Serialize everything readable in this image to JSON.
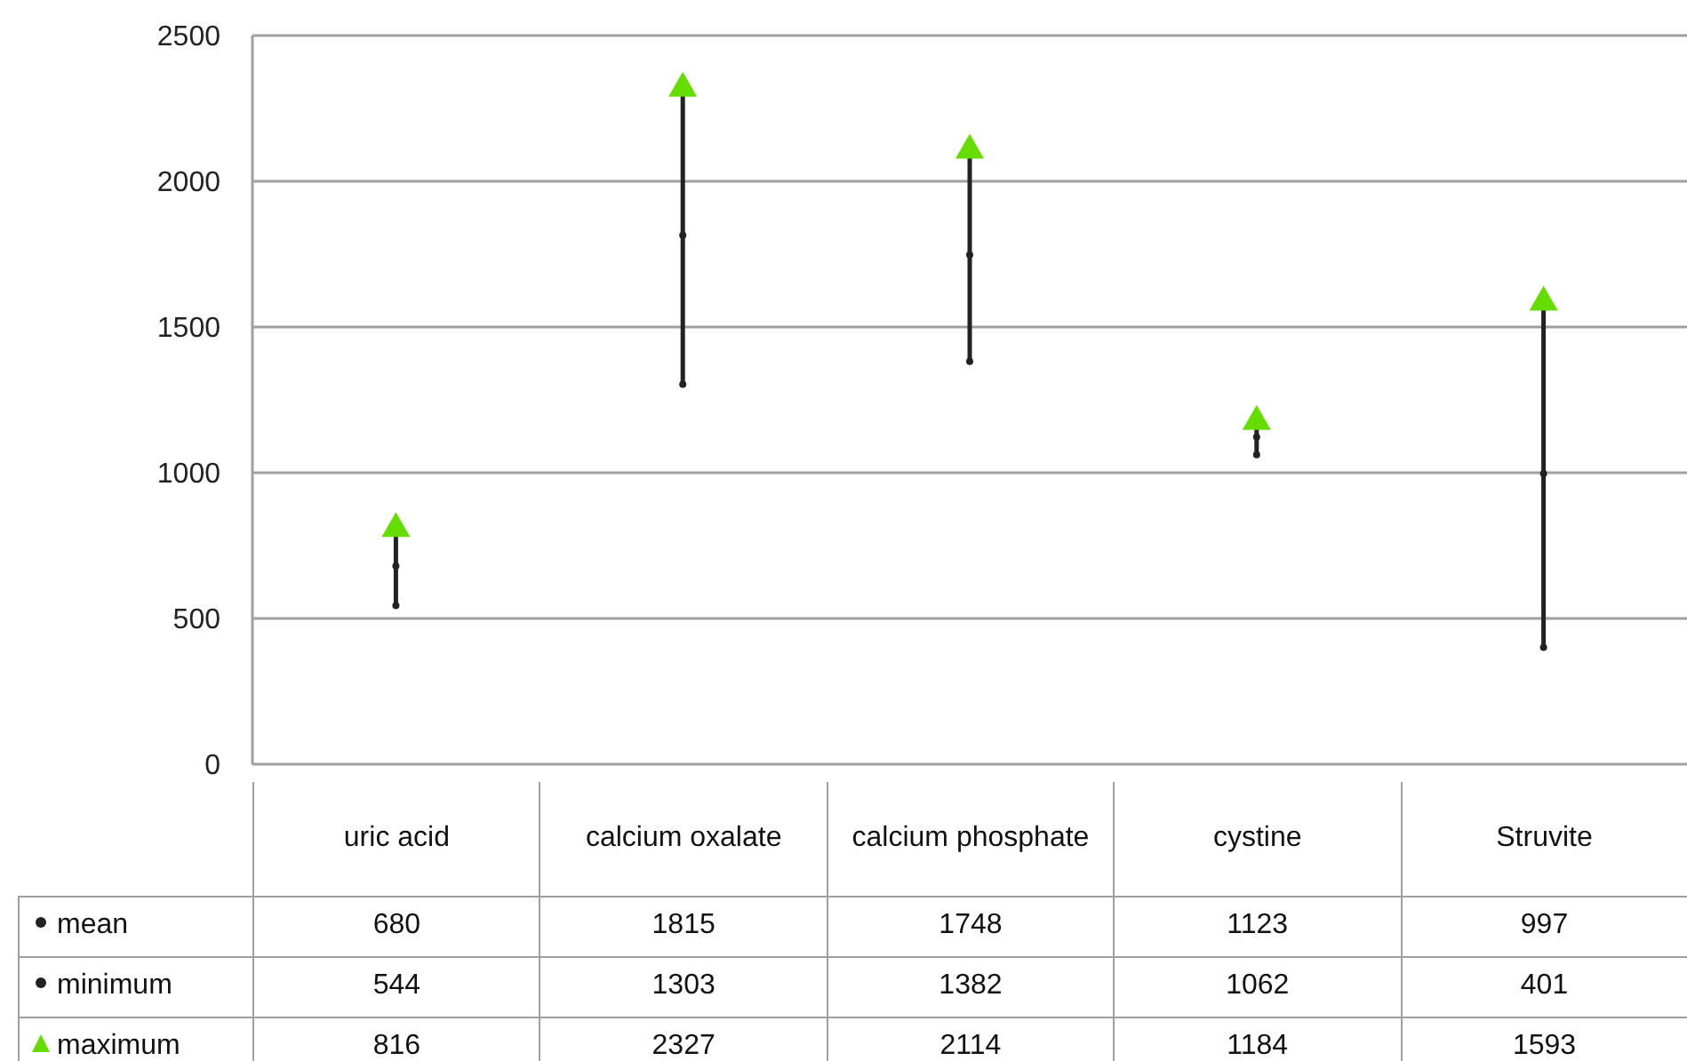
{
  "chart_data": {
    "type": "scatter",
    "categories": [
      "uric acid",
      "calcium oxalate",
      "calcium phosphate",
      "cystine",
      "Struvite"
    ],
    "series": [
      {
        "name": "mean",
        "color": "#222222",
        "values": [
          680,
          1815,
          1748,
          1123,
          997
        ],
        "marker": "circle"
      },
      {
        "name": "minimum",
        "color": "#222222",
        "values": [
          544,
          1303,
          1382,
          1062,
          401
        ],
        "marker": "circle"
      },
      {
        "name": "maximum",
        "color": "#66dd00",
        "values": [
          816,
          2327,
          2114,
          1184,
          1593
        ],
        "marker": "triangle"
      }
    ],
    "ylim": [
      0,
      2500
    ],
    "yticks": [
      0,
      500,
      1000,
      1500,
      2000,
      2500
    ],
    "grid": "y",
    "legend": "bottom",
    "data_labels": true
  }
}
